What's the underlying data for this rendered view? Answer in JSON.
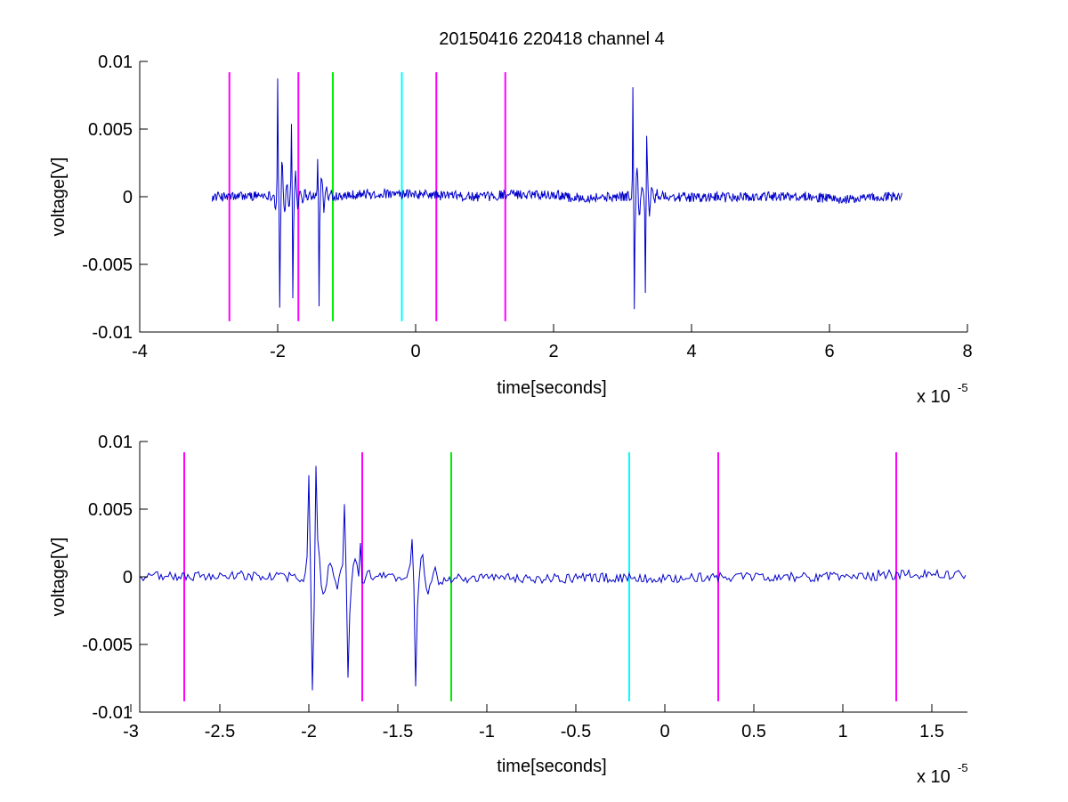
{
  "chart_data": [
    {
      "type": "line",
      "title": "20150416 220418 channel 4",
      "xlabel": "time[seconds]",
      "ylabel": "voltage[V]",
      "x_exponent_label": "x 10",
      "x_exponent_power": "-5",
      "x_scale": 1e-05,
      "xlim": [
        -4,
        8
      ],
      "ylim": [
        -0.01,
        0.01
      ],
      "x_ticks": [
        -4,
        -2,
        0,
        2,
        4,
        6,
        8
      ],
      "x_tick_labels": [
        "-4",
        "-2",
        "0",
        "2",
        "4",
        "6",
        "8"
      ],
      "y_ticks": [
        0.01,
        0.005,
        0,
        -0.005,
        -0.01
      ],
      "y_tick_labels": [
        "0.01",
        "0.005",
        "0",
        "-0.005",
        "-0.01"
      ],
      "grid": false,
      "signal": {
        "color": "#0000cc",
        "x_range": [
          -2.95,
          7.05
        ],
        "bursts": [
          {
            "x": -2.0,
            "value": 0.0082
          },
          {
            "x": -1.97,
            "value": -0.0082
          },
          {
            "x": -1.8,
            "value": 0.0052
          },
          {
            "x": -1.78,
            "value": -0.0075
          },
          {
            "x": -1.42,
            "value": 0.0026
          },
          {
            "x": -1.4,
            "value": -0.0081
          },
          {
            "x": 3.15,
            "value": 0.0079
          },
          {
            "x": 3.17,
            "value": -0.0083
          },
          {
            "x": 3.33,
            "value": -0.007
          },
          {
            "x": 3.35,
            "value": 0.0045
          }
        ]
      },
      "markers": [
        {
          "x": -2.7,
          "color": "#ff00ff",
          "y_range": [
            -0.0092,
            0.0092
          ]
        },
        {
          "x": -1.7,
          "color": "#ff00ff",
          "y_range": [
            -0.0092,
            0.0092
          ]
        },
        {
          "x": -1.2,
          "color": "#00ee00",
          "y_range": [
            -0.0092,
            0.0092
          ]
        },
        {
          "x": -0.2,
          "color": "#00ffff",
          "y_range": [
            -0.0092,
            0.0092
          ]
        },
        {
          "x": 0.3,
          "color": "#ff00ff",
          "y_range": [
            -0.0092,
            0.0092
          ]
        },
        {
          "x": 1.3,
          "color": "#ff00ff",
          "y_range": [
            -0.0092,
            0.0092
          ]
        }
      ]
    },
    {
      "type": "line",
      "title": "",
      "xlabel": "time[seconds]",
      "ylabel": "voltage[V]",
      "x_exponent_label": "x 10",
      "x_exponent_power": "-5",
      "x_scale": 1e-05,
      "xlim": [
        -2.95,
        1.7
      ],
      "ylim": [
        -0.01,
        0.01
      ],
      "x_ticks": [
        -3,
        -2.5,
        -2,
        -1.5,
        -1,
        -0.5,
        0,
        0.5,
        1,
        1.5
      ],
      "x_tick_labels": [
        "-3",
        "-2.5",
        "-2",
        "-1.5",
        "-1",
        "-0.5",
        "0",
        "0.5",
        "1",
        "1.5"
      ],
      "y_ticks": [
        0.01,
        0.005,
        0,
        -0.005,
        -0.01
      ],
      "y_tick_labels": [
        "0.01",
        "0.005",
        "0",
        "-0.005",
        "-0.01"
      ],
      "grid": false,
      "signal": {
        "color": "#0000cc",
        "x_range": [
          -2.95,
          1.7
        ],
        "bursts": [
          {
            "x": -2.0,
            "value": 0.0077
          },
          {
            "x": -1.98,
            "value": -0.0082
          },
          {
            "x": -1.96,
            "value": 0.0082
          },
          {
            "x": -1.8,
            "value": 0.0052
          },
          {
            "x": -1.78,
            "value": -0.0075
          },
          {
            "x": -1.71,
            "value": 0.0025
          },
          {
            "x": -1.42,
            "value": 0.0026
          },
          {
            "x": -1.4,
            "value": -0.0081
          }
        ]
      },
      "markers": [
        {
          "x": -2.7,
          "color": "#ff00ff",
          "y_range": [
            -0.0092,
            0.0092
          ]
        },
        {
          "x": -1.7,
          "color": "#ff00ff",
          "y_range": [
            -0.0092,
            0.0092
          ]
        },
        {
          "x": -1.2,
          "color": "#00ee00",
          "y_range": [
            -0.0092,
            0.0092
          ]
        },
        {
          "x": -0.2,
          "color": "#00ffff",
          "y_range": [
            -0.0092,
            0.0092
          ]
        },
        {
          "x": 0.3,
          "color": "#ff00ff",
          "y_range": [
            -0.0092,
            0.0092
          ]
        },
        {
          "x": 1.3,
          "color": "#ff00ff",
          "y_range": [
            -0.0092,
            0.0092
          ]
        }
      ]
    }
  ]
}
